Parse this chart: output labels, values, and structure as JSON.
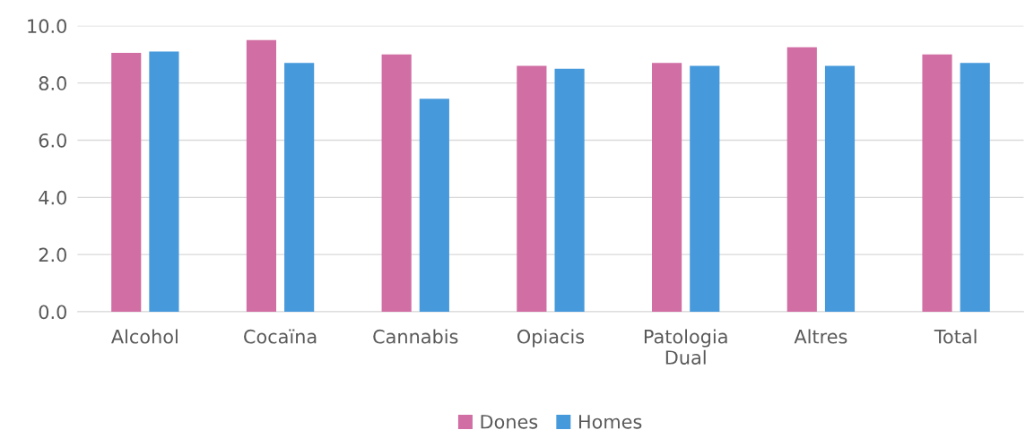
{
  "chart_data": {
    "type": "bar",
    "categories": [
      "Alcohol",
      "Cocaïna",
      "Cannabis",
      "Opiacis",
      "Patologia\nDual",
      "Altres",
      "Total"
    ],
    "series": [
      {
        "name": "Dones",
        "color": "#d16ea4",
        "values": [
          9.05,
          9.5,
          9.0,
          8.6,
          8.7,
          9.25,
          9.0
        ]
      },
      {
        "name": "Homes",
        "color": "#4699db",
        "values": [
          9.1,
          8.7,
          7.45,
          8.5,
          8.6,
          8.6,
          8.7
        ]
      }
    ],
    "ylim": [
      0,
      10
    ],
    "yticks": [
      {
        "value": 0,
        "label": "0.0"
      },
      {
        "value": 2,
        "label": "2.0"
      },
      {
        "value": 4,
        "label": "4.0"
      },
      {
        "value": 6,
        "label": "6.0"
      },
      {
        "value": 8,
        "label": "8.0"
      },
      {
        "value": 10,
        "label": "10.0"
      }
    ],
    "grid": "y",
    "legend": "bottom"
  }
}
